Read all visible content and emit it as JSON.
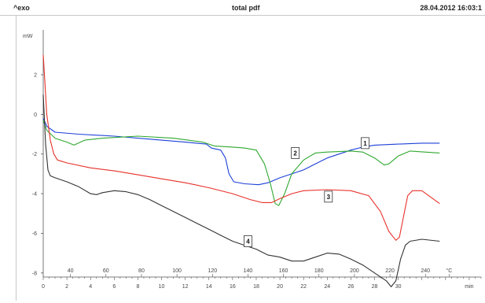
{
  "header": {
    "exo_label": "^exo",
    "title": "total pdf",
    "timestamp": "28.04.2012 16:03:1"
  },
  "chart_data": {
    "type": "line",
    "title": "total pdf",
    "ylabel": "mW",
    "xlabel_time": "min",
    "xlabel_temp": "°C",
    "xlim": [
      0,
      37
    ],
    "ylim": [
      -9,
      4.5
    ],
    "y_ticks": [
      2,
      0,
      -2,
      -4,
      -6,
      -8
    ],
    "time_ticks": [
      0,
      2,
      4,
      6,
      8,
      10,
      12,
      14,
      16,
      18,
      20,
      22,
      24,
      26,
      28,
      30,
      32,
      34,
      36
    ],
    "time_tick_labels": [
      "0",
      "2",
      "4",
      "6",
      "8",
      "10",
      "12",
      "14",
      "16",
      "18",
      "20",
      "22",
      "24",
      "26",
      "28",
      "30",
      "",
      "",
      "min"
    ],
    "temp_ticks": [
      {
        "label": "40",
        "t": 2.3
      },
      {
        "label": "60",
        "t": 5.3
      },
      {
        "label": "80",
        "t": 8.3
      },
      {
        "label": "100",
        "t": 11.3
      },
      {
        "label": "120",
        "t": 14.3
      },
      {
        "label": "140",
        "t": 17.3
      },
      {
        "label": "160",
        "t": 20.3
      },
      {
        "label": "180",
        "t": 23.3
      },
      {
        "label": "200",
        "t": 26.3
      },
      {
        "label": "220",
        "t": 29.3
      },
      {
        "label": "240",
        "t": 32.3
      },
      {
        "label": "°C",
        "t": 34.3
      }
    ],
    "series": [
      {
        "name": "1",
        "color": "#1c3fd8",
        "points": [
          [
            0,
            -0.2
          ],
          [
            0.3,
            -0.6
          ],
          [
            1,
            -0.9
          ],
          [
            3,
            -1.0
          ],
          [
            6,
            -1.1
          ],
          [
            9,
            -1.25
          ],
          [
            12,
            -1.4
          ],
          [
            13.8,
            -1.5
          ],
          [
            14.2,
            -1.7
          ],
          [
            15,
            -1.8
          ],
          [
            15.4,
            -2.2
          ],
          [
            15.7,
            -3.0
          ],
          [
            16.1,
            -3.4
          ],
          [
            17,
            -3.5
          ],
          [
            18.2,
            -3.55
          ],
          [
            19,
            -3.45
          ],
          [
            20,
            -3.2
          ],
          [
            21,
            -3.0
          ],
          [
            22,
            -2.8
          ],
          [
            23,
            -2.5
          ],
          [
            24,
            -2.2
          ],
          [
            25,
            -2.0
          ],
          [
            26,
            -1.8
          ],
          [
            27,
            -1.65
          ],
          [
            28,
            -1.55
          ],
          [
            30,
            -1.5
          ],
          [
            32,
            -1.45
          ],
          [
            33.5,
            -1.45
          ]
        ]
      },
      {
        "name": "2",
        "color": "#2fa82f",
        "points": [
          [
            0,
            -0.3
          ],
          [
            0.3,
            -0.8
          ],
          [
            1,
            -1.2
          ],
          [
            2,
            -1.4
          ],
          [
            2.6,
            -1.55
          ],
          [
            3.5,
            -1.3
          ],
          [
            5,
            -1.2
          ],
          [
            8,
            -1.1
          ],
          [
            11,
            -1.2
          ],
          [
            13.5,
            -1.4
          ],
          [
            14.5,
            -1.6
          ],
          [
            16,
            -1.65
          ],
          [
            17,
            -1.7
          ],
          [
            18,
            -1.8
          ],
          [
            18.7,
            -2.5
          ],
          [
            19.2,
            -3.5
          ],
          [
            19.6,
            -4.5
          ],
          [
            19.9,
            -4.6
          ],
          [
            20.4,
            -4.0
          ],
          [
            21,
            -3.0
          ],
          [
            22,
            -2.3
          ],
          [
            23,
            -1.95
          ],
          [
            24,
            -1.9
          ],
          [
            26,
            -1.85
          ],
          [
            27,
            -1.9
          ],
          [
            28,
            -2.2
          ],
          [
            28.8,
            -2.55
          ],
          [
            29.2,
            -2.5
          ],
          [
            30,
            -2.1
          ],
          [
            31,
            -1.85
          ],
          [
            33.5,
            -1.95
          ]
        ]
      },
      {
        "name": "3",
        "color": "#e8312a",
        "points": [
          [
            0,
            3.0
          ],
          [
            0.15,
            1.5
          ],
          [
            0.3,
            0.0
          ],
          [
            0.6,
            -1.3
          ],
          [
            0.9,
            -2.0
          ],
          [
            1.2,
            -2.3
          ],
          [
            2,
            -2.45
          ],
          [
            4,
            -2.7
          ],
          [
            6,
            -2.85
          ],
          [
            8,
            -3.05
          ],
          [
            10,
            -3.25
          ],
          [
            12,
            -3.45
          ],
          [
            14,
            -3.7
          ],
          [
            16,
            -4.0
          ],
          [
            17.5,
            -4.3
          ],
          [
            18.5,
            -4.45
          ],
          [
            19.3,
            -4.45
          ],
          [
            20,
            -4.25
          ],
          [
            21,
            -4.0
          ],
          [
            22,
            -3.85
          ],
          [
            24,
            -3.8
          ],
          [
            26,
            -3.85
          ],
          [
            27.5,
            -4.1
          ],
          [
            28.5,
            -4.9
          ],
          [
            29.2,
            -5.9
          ],
          [
            29.8,
            -6.35
          ],
          [
            30.1,
            -6.2
          ],
          [
            30.5,
            -5.0
          ],
          [
            30.8,
            -4.1
          ],
          [
            31.2,
            -3.85
          ],
          [
            32,
            -3.85
          ],
          [
            33.5,
            -4.5
          ]
        ]
      },
      {
        "name": "4",
        "color": "#333333",
        "points": [
          [
            0,
            1.0
          ],
          [
            0.2,
            -1.5
          ],
          [
            0.4,
            -2.8
          ],
          [
            0.6,
            -3.1
          ],
          [
            1,
            -3.2
          ],
          [
            2,
            -3.4
          ],
          [
            3,
            -3.65
          ],
          [
            4,
            -4.0
          ],
          [
            4.5,
            -4.05
          ],
          [
            5,
            -3.95
          ],
          [
            6,
            -3.85
          ],
          [
            7,
            -3.9
          ],
          [
            8,
            -4.05
          ],
          [
            9,
            -4.3
          ],
          [
            10,
            -4.6
          ],
          [
            11,
            -4.9
          ],
          [
            12,
            -5.2
          ],
          [
            13,
            -5.5
          ],
          [
            14,
            -5.8
          ],
          [
            15,
            -6.1
          ],
          [
            16,
            -6.4
          ],
          [
            17,
            -6.6
          ],
          [
            18,
            -6.8
          ],
          [
            19,
            -7.1
          ],
          [
            20,
            -7.2
          ],
          [
            21,
            -7.4
          ],
          [
            22,
            -7.4
          ],
          [
            23,
            -7.2
          ],
          [
            24,
            -7.0
          ],
          [
            25,
            -7.05
          ],
          [
            26,
            -7.3
          ],
          [
            27,
            -7.6
          ],
          [
            28,
            -8.0
          ],
          [
            29,
            -8.4
          ],
          [
            29.4,
            -8.7
          ],
          [
            29.8,
            -8.4
          ],
          [
            30.2,
            -7.3
          ],
          [
            30.6,
            -6.6
          ],
          [
            31,
            -6.4
          ],
          [
            32,
            -6.3
          ],
          [
            33.5,
            -6.4
          ]
        ]
      }
    ],
    "callouts": [
      {
        "label": "1",
        "t": 27.2,
        "y": -1.45
      },
      {
        "label": "2",
        "t": 21.3,
        "y": -1.95
      },
      {
        "label": "3",
        "t": 24.1,
        "y": -4.15
      },
      {
        "label": "4",
        "t": 17.3,
        "y": -6.4
      }
    ]
  }
}
